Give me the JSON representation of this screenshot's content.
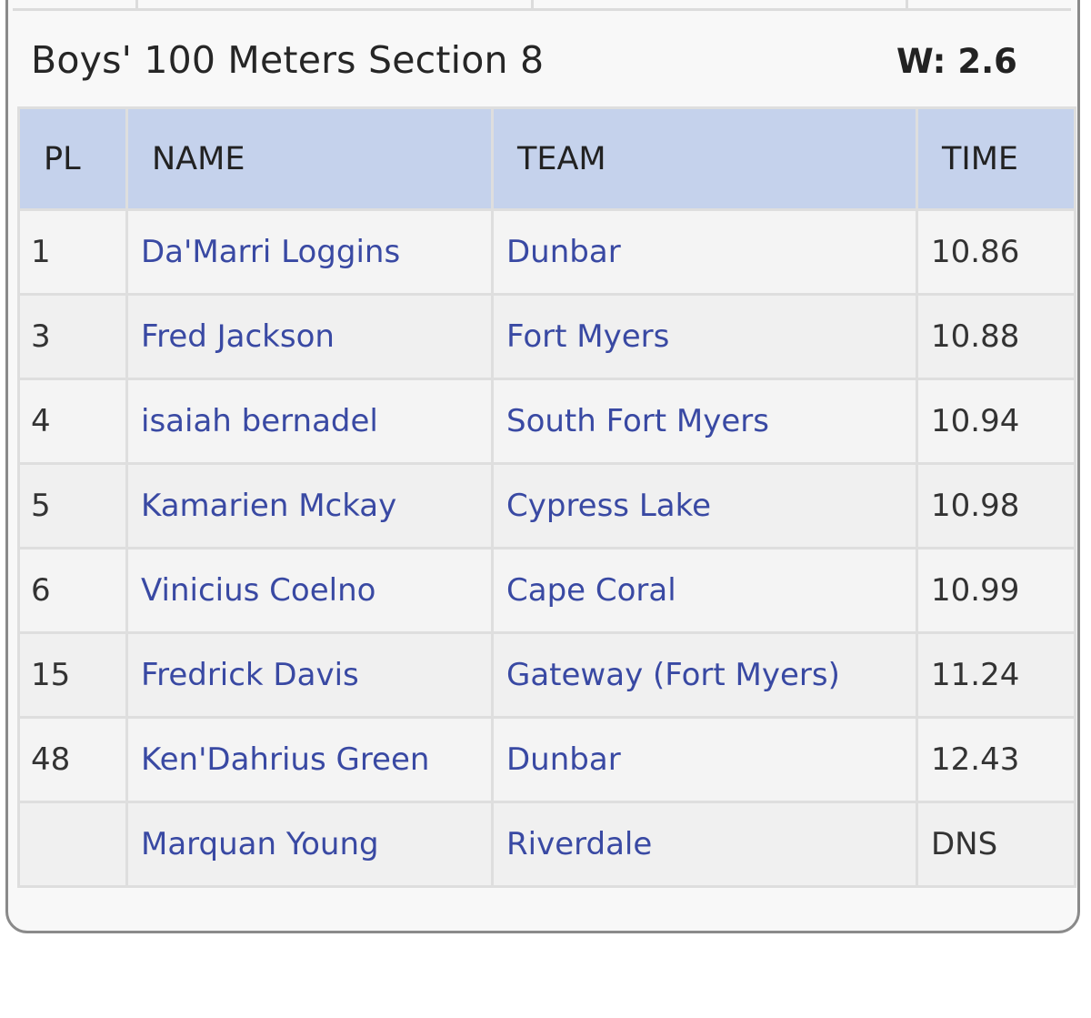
{
  "section": {
    "title": "Boys' 100 Meters Section 8",
    "wind": "W: 2.6"
  },
  "columns": {
    "pl": "PL",
    "name": "NAME",
    "team": "TEAM",
    "time": "TIME"
  },
  "rows": [
    {
      "pl": "1",
      "name": "Da'Marri Loggins",
      "team": "Dunbar",
      "time": "10.86"
    },
    {
      "pl": "3",
      "name": "Fred Jackson",
      "team": "Fort Myers",
      "time": "10.88"
    },
    {
      "pl": "4",
      "name": "isaiah bernadel",
      "team": "South Fort Myers",
      "time": "10.94"
    },
    {
      "pl": "5",
      "name": "Kamarien Mckay",
      "team": "Cypress Lake",
      "time": "10.98"
    },
    {
      "pl": "6",
      "name": "Vinicius Coelno",
      "team": "Cape Coral",
      "time": "10.99"
    },
    {
      "pl": "15",
      "name": "Fredrick Davis",
      "team": "Gateway (Fort Myers)",
      "time": "11.24"
    },
    {
      "pl": "48",
      "name": "Ken'Dahrius Green",
      "team": "Dunbar",
      "time": "12.43"
    },
    {
      "pl": "",
      "name": "Marquan Young",
      "team": "Riverdale",
      "time": "DNS"
    }
  ],
  "colors": {
    "header_bg": "#c5d2ec",
    "link": "#3949a3",
    "text": "#262626"
  }
}
